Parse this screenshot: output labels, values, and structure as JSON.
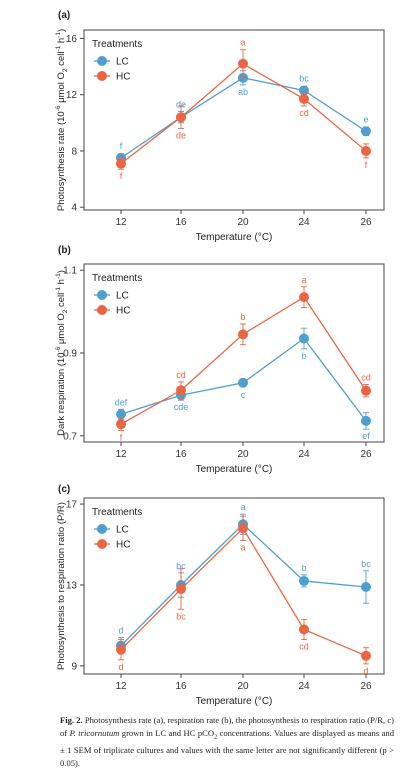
{
  "chart_data": [
    {
      "type": "line",
      "panel_label": "(a)",
      "xlabel": "Temperature (°C)",
      "ylabel_base": "Photosynthesis rate (10",
      "ylabel_sup1": "-6",
      "ylabel_mid": " μmol O",
      "ylabel_sub": "2",
      "ylabel_mid2": " cell",
      "ylabel_sup2": "-1",
      "ylabel_mid3": " h",
      "ylabel_sup3": "-1",
      "ylabel_end": ")",
      "x": [
        12,
        16,
        20,
        24,
        26
      ],
      "xticks": [
        "12",
        "16",
        "20",
        "24",
        "26"
      ],
      "ylim": [
        3.8,
        16.6
      ],
      "yticks": [
        4,
        8,
        12,
        16
      ],
      "legend_title": "Treatments",
      "series": [
        {
          "name": "LC",
          "color": "#4e9fd1",
          "values": [
            7.5,
            10.4,
            13.2,
            12.3,
            9.4
          ],
          "errors": [
            0.3,
            0.4,
            0.5,
            0.3,
            0.3
          ],
          "labels": [
            "f",
            "de",
            "ab",
            "bc",
            "e"
          ],
          "label_pos": [
            "above",
            "above",
            "below",
            "above",
            "above"
          ]
        },
        {
          "name": "HC",
          "color": "#ec6542",
          "values": [
            7.1,
            10.4,
            14.2,
            11.7,
            8.0
          ],
          "errors": [
            0.4,
            0.8,
            1.0,
            0.5,
            0.5
          ],
          "labels": [
            "f",
            "de",
            "a",
            "cd",
            "f"
          ],
          "label_pos": [
            "below",
            "below",
            "above",
            "below",
            "below"
          ]
        }
      ]
    },
    {
      "type": "line",
      "panel_label": "(b)",
      "xlabel": "Temperature (°C)",
      "ylabel_base": "Dark respiration (10",
      "ylabel_sup1": "-6",
      "ylabel_mid": " μmol O",
      "ylabel_sub": "2",
      "ylabel_mid2": " cell",
      "ylabel_sup2": "-1",
      "ylabel_mid3": " h",
      "ylabel_sup3": "-1",
      "ylabel_end": ")",
      "x": [
        12,
        16,
        20,
        24,
        26
      ],
      "xticks": [
        "12",
        "16",
        "20",
        "24",
        "26"
      ],
      "ylim": [
        0.685,
        1.115
      ],
      "yticks": [
        0.7,
        0.9,
        1.1
      ],
      "legend_title": "Treatments",
      "series": [
        {
          "name": "LC",
          "color": "#4e9fd1",
          "values": [
            0.752,
            0.798,
            0.828,
            0.935,
            0.736
          ],
          "errors": [
            0.012,
            0.012,
            0.008,
            0.025,
            0.02
          ],
          "labels": [
            "def",
            "cde",
            "c",
            "b",
            "ef"
          ],
          "label_pos": [
            "above",
            "below",
            "below",
            "below",
            "below"
          ]
        },
        {
          "name": "HC",
          "color": "#ec6542",
          "values": [
            0.728,
            0.81,
            0.945,
            1.035,
            0.809
          ],
          "errors": [
            0.015,
            0.02,
            0.025,
            0.025,
            0.015
          ],
          "labels": [
            "f",
            "cd",
            "b",
            "a",
            "cd"
          ],
          "label_pos": [
            "below",
            "above",
            "above",
            "above",
            "above"
          ]
        }
      ]
    },
    {
      "type": "line",
      "panel_label": "(c)",
      "xlabel": "Temperature (°C)",
      "ylabel_base": "Photosynthesis to respiration ratio (P/R)",
      "ylabel_sup1": "",
      "ylabel_mid": "",
      "ylabel_sub": "",
      "ylabel_mid2": "",
      "ylabel_sup2": "",
      "ylabel_mid3": "",
      "ylabel_sup3": "",
      "ylabel_end": "",
      "x": [
        12,
        16,
        20,
        24,
        26
      ],
      "xticks": [
        "12",
        "16",
        "20",
        "24",
        "26"
      ],
      "ylim": [
        8.6,
        17.3
      ],
      "yticks": [
        9,
        13,
        17
      ],
      "legend_title": "Treatments",
      "series": [
        {
          "name": "LC",
          "color": "#4e9fd1",
          "values": [
            10.0,
            13.0,
            16.0,
            13.2,
            12.9
          ],
          "errors": [
            0.4,
            0.6,
            0.5,
            0.3,
            0.8
          ],
          "labels": [
            "d",
            "bc",
            "a",
            "b",
            "bc"
          ],
          "label_pos": [
            "above",
            "above",
            "above",
            "above",
            "above"
          ]
        },
        {
          "name": "HC",
          "color": "#ec6542",
          "values": [
            9.8,
            12.8,
            15.8,
            10.8,
            9.5
          ],
          "errors": [
            0.5,
            1.0,
            0.6,
            0.5,
            0.4
          ],
          "labels": [
            "d",
            "bc",
            "a",
            "cd",
            "d"
          ],
          "label_pos": [
            "below",
            "below",
            "below",
            "below",
            "below"
          ]
        }
      ]
    }
  ],
  "caption": {
    "fig_label": "Fig. 2.",
    "text_1": " Photosynthesis rate (a), respiration rate (b), the photosynthesis to respiration ratio (P/R, c) of ",
    "species": "P. tricornutum",
    "text_2": " grown in LC and HC pCO",
    "sub": "2",
    "text_3": " concentrations. Values are displayed as means and ± 1 SEM of triplicate cultures and values with the same letter are not significantly different (p > 0.05)."
  }
}
